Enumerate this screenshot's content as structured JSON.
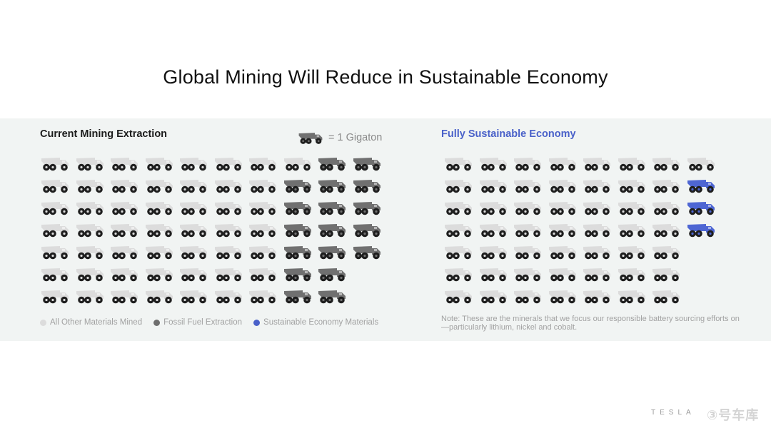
{
  "title": "Global Mining Will Reduce in Sustainable Economy",
  "left_panel": {
    "title": "Current Mining Extraction"
  },
  "right_panel": {
    "title": "Fully Sustainable Economy"
  },
  "key": {
    "label": "= 1 Gigaton"
  },
  "legend": {
    "items": [
      {
        "label": "All Other Materials Mined",
        "color": "#dcdcdc"
      },
      {
        "label": "Fossil Fuel Extraction",
        "color": "#6e6e6e"
      },
      {
        "label": "Sustainable Economy Materials",
        "color": "#4a61c9"
      }
    ]
  },
  "note": "Note: These are the minerals that we focus our responsible battery sourcing efforts on—particularly lithium, nickel and cobalt.",
  "logo_text": "TESLA",
  "watermark_text": "③号车库",
  "colors": {
    "other": "#dcdcdc",
    "fossil": "#707070",
    "sustainable": "#4e66d3",
    "wheel": "#1e1e1e"
  },
  "chart_data": [
    {
      "type": "pictogram",
      "title": "Current Mining Extraction",
      "unit": "1 Gigaton",
      "rows": [
        {
          "other": 8,
          "fossil": 2,
          "sustainable": 0
        },
        {
          "other": 7,
          "fossil": 3,
          "sustainable": 0
        },
        {
          "other": 7,
          "fossil": 3,
          "sustainable": 0
        },
        {
          "other": 7,
          "fossil": 3,
          "sustainable": 0
        },
        {
          "other": 7,
          "fossil": 3,
          "sustainable": 0
        },
        {
          "other": 7,
          "fossil": 2,
          "sustainable": 0
        },
        {
          "other": 7,
          "fossil": 2,
          "sustainable": 0
        }
      ],
      "totals": {
        "other": 50,
        "fossil": 18,
        "sustainable": 0
      }
    },
    {
      "type": "pictogram",
      "title": "Fully Sustainable Economy",
      "unit": "1 Gigaton",
      "rows": [
        {
          "other": 8,
          "fossil": 0,
          "sustainable": 0
        },
        {
          "other": 7,
          "fossil": 0,
          "sustainable": 1
        },
        {
          "other": 7,
          "fossil": 0,
          "sustainable": 1
        },
        {
          "other": 7,
          "fossil": 0,
          "sustainable": 1
        },
        {
          "other": 7,
          "fossil": 0,
          "sustainable": 0
        },
        {
          "other": 7,
          "fossil": 0,
          "sustainable": 0
        },
        {
          "other": 7,
          "fossil": 0,
          "sustainable": 0
        }
      ],
      "totals": {
        "other": 50,
        "fossil": 0,
        "sustainable": 3
      }
    }
  ]
}
